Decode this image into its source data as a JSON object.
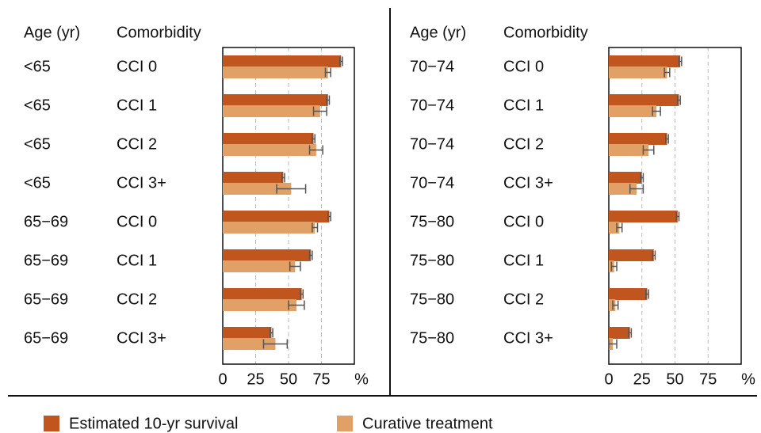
{
  "chart_data": [
    {
      "type": "bar",
      "orientation": "horizontal",
      "column_headers": [
        "Age (yr)",
        "Comorbidity"
      ],
      "age": [
        "<65",
        "<65",
        "<65",
        "<65",
        "65−69",
        "65−69",
        "65−69",
        "65−69"
      ],
      "comorbidity": [
        "CCI 0",
        "CCI 1",
        "CCI 2",
        "CCI 3+",
        "CCI 0",
        "CCI 1",
        "CCI 2",
        "CCI 3+"
      ],
      "series": [
        {
          "name": "Estimated 10-yr survival",
          "color": "#c0561e",
          "values": [
            90,
            80,
            69,
            46,
            81,
            67,
            60,
            37
          ],
          "errors": [
            1,
            1,
            1,
            1,
            1,
            1,
            1,
            1
          ]
        },
        {
          "name": "Curative treatment",
          "color": "#e0a066",
          "values": [
            80,
            74,
            71,
            52,
            70,
            55,
            56,
            40
          ],
          "errors": [
            2,
            5,
            5,
            11,
            2,
            4,
            6,
            9
          ]
        }
      ],
      "xlabel": "%",
      "xlim": [
        0,
        100
      ],
      "xticks": [
        0,
        25,
        50,
        75
      ],
      "grid": true
    },
    {
      "type": "bar",
      "orientation": "horizontal",
      "column_headers": [
        "Age (yr)",
        "Comorbidity"
      ],
      "age": [
        "70−74",
        "70−74",
        "70−74",
        "70−74",
        "75−80",
        "75−80",
        "75−80",
        "75−80"
      ],
      "comorbidity": [
        "CCI 0",
        "CCI 1",
        "CCI 2",
        "CCI 3+",
        "CCI 0",
        "CCI 1",
        "CCI 2",
        "CCI 3+"
      ],
      "series": [
        {
          "color": "#c0561e",
          "values": [
            54,
            53,
            44,
            25,
            52,
            34,
            29,
            16
          ],
          "errors": [
            1,
            1,
            1,
            1,
            1,
            1,
            1,
            1
          ]
        },
        {
          "color": "#e0a066",
          "values": [
            44,
            36,
            30,
            21,
            8,
            4,
            5,
            3
          ],
          "errors": [
            2,
            3,
            4,
            5,
            2,
            2,
            2,
            3
          ]
        }
      ],
      "xlabel": "%",
      "xlim": [
        0,
        100
      ],
      "xticks": [
        0,
        25,
        50,
        75
      ],
      "grid": true
    }
  ]
}
